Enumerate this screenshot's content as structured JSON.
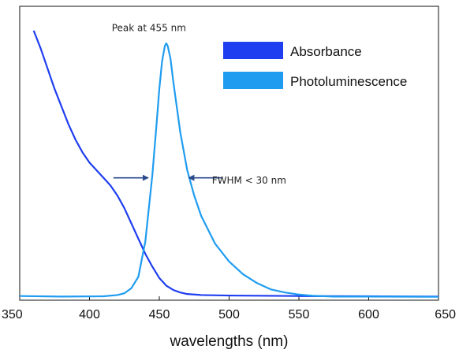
{
  "chart_data": {
    "type": "line",
    "xlabel": "wavelengths (nm)",
    "ylabel": "",
    "xlim": [
      350,
      650
    ],
    "ylim": [
      0,
      1.0
    ],
    "x_ticks": [
      "350",
      "400",
      "450",
      "500",
      "550",
      "600",
      "650"
    ],
    "grid": false,
    "legend_position": "top-right",
    "series": [
      {
        "name": "Absorbance",
        "color": "#1f3ef0",
        "points": [
          [
            360,
            1.05
          ],
          [
            365,
            0.98
          ],
          [
            370,
            0.9
          ],
          [
            375,
            0.82
          ],
          [
            380,
            0.75
          ],
          [
            385,
            0.68
          ],
          [
            390,
            0.62
          ],
          [
            395,
            0.57
          ],
          [
            400,
            0.53
          ],
          [
            405,
            0.5
          ],
          [
            410,
            0.47
          ],
          [
            415,
            0.44
          ],
          [
            420,
            0.4
          ],
          [
            425,
            0.35
          ],
          [
            430,
            0.29
          ],
          [
            435,
            0.23
          ],
          [
            440,
            0.17
          ],
          [
            445,
            0.12
          ],
          [
            450,
            0.075
          ],
          [
            455,
            0.045
          ],
          [
            460,
            0.028
          ],
          [
            465,
            0.018
          ],
          [
            470,
            0.012
          ],
          [
            480,
            0.008
          ],
          [
            500,
            0.006
          ],
          [
            550,
            0.004
          ],
          [
            600,
            0.003
          ],
          [
            650,
            0.002
          ]
        ]
      },
      {
        "name": "Photoluminescence",
        "color": "#1f9cf0",
        "points": [
          [
            350,
            0.004
          ],
          [
            380,
            0.002
          ],
          [
            410,
            0.003
          ],
          [
            420,
            0.008
          ],
          [
            425,
            0.015
          ],
          [
            430,
            0.035
          ],
          [
            435,
            0.08
          ],
          [
            440,
            0.22
          ],
          [
            445,
            0.48
          ],
          [
            448,
            0.68
          ],
          [
            450,
            0.82
          ],
          [
            452,
            0.93
          ],
          [
            454,
            0.99
          ],
          [
            455,
            1.0
          ],
          [
            456,
            0.99
          ],
          [
            458,
            0.94
          ],
          [
            460,
            0.85
          ],
          [
            465,
            0.65
          ],
          [
            470,
            0.5
          ],
          [
            475,
            0.4
          ],
          [
            480,
            0.32
          ],
          [
            490,
            0.21
          ],
          [
            500,
            0.14
          ],
          [
            510,
            0.09
          ],
          [
            520,
            0.055
          ],
          [
            530,
            0.03
          ],
          [
            540,
            0.018
          ],
          [
            550,
            0.01
          ],
          [
            560,
            0.005
          ],
          [
            575,
            0.002
          ],
          [
            600,
            0.002
          ],
          [
            650,
            0.001
          ]
        ]
      }
    ],
    "annotations": [
      {
        "text": "Peak at 455 nm",
        "at": [
          455,
          1.03
        ]
      },
      {
        "text": "FWHM < 30 nm",
        "at": [
          473,
          0.46
        ]
      }
    ],
    "fwhm_arrows": {
      "left_tip": [
        442,
        0.47
      ],
      "right_tip": [
        470,
        0.47
      ]
    }
  }
}
